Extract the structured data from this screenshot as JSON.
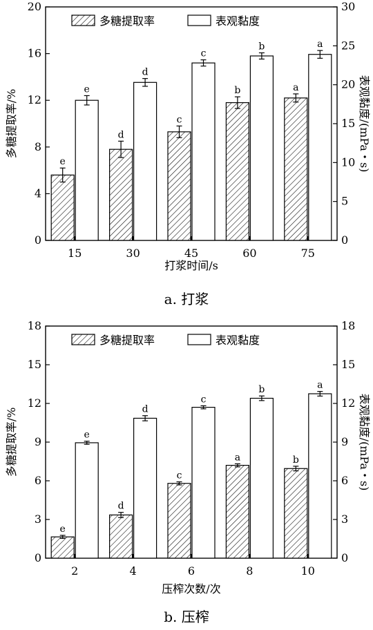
{
  "chart_data": [
    {
      "type": "bar",
      "categories": [
        "15",
        "30",
        "45",
        "60",
        "75"
      ],
      "xlabel": "打浆时间/s",
      "ylabel": "多糖提取率/%",
      "y2label": "表观黏度/(mPa・s)",
      "ylim": [
        0,
        20
      ],
      "y2lim": [
        0,
        30
      ],
      "yticks": [
        "0",
        "4",
        "8",
        "12",
        "16",
        "20"
      ],
      "y2ticks": [
        "0",
        "5",
        "10",
        "15",
        "20",
        "25",
        "30"
      ],
      "legend_position": "top",
      "caption": "a. 打浆",
      "series": [
        {
          "name": "多糖提取率",
          "axis": "left",
          "fill": "hatched",
          "values": [
            5.6,
            7.8,
            9.3,
            11.8,
            12.2
          ],
          "errors": [
            0.6,
            0.7,
            0.5,
            0.5,
            0.35
          ],
          "letters": [
            "e",
            "d",
            "c",
            "b",
            "a"
          ]
        },
        {
          "name": "表观黏度",
          "axis": "right",
          "fill": "white",
          "values": [
            18.0,
            20.3,
            22.8,
            23.7,
            23.9
          ],
          "errors": [
            0.6,
            0.5,
            0.4,
            0.4,
            0.5
          ],
          "letters": [
            "e",
            "d",
            "c",
            "b",
            "a"
          ]
        }
      ]
    },
    {
      "type": "bar",
      "categories": [
        "2",
        "4",
        "6",
        "8",
        "10"
      ],
      "xlabel": "压榨次数/次",
      "ylabel": "多糖提取率/%",
      "y2label": "表观黏度/(mPa・s)",
      "ylim": [
        0,
        18
      ],
      "y2lim": [
        0,
        18
      ],
      "yticks": [
        "0",
        "3",
        "6",
        "9",
        "12",
        "15",
        "18"
      ],
      "y2ticks": [
        "0",
        "3",
        "6",
        "9",
        "12",
        "15",
        "18"
      ],
      "legend_position": "top",
      "caption": "b. 压榨",
      "series": [
        {
          "name": "多糖提取率",
          "axis": "left",
          "fill": "hatched",
          "values": [
            1.65,
            3.35,
            5.8,
            7.2,
            6.95
          ],
          "errors": [
            0.12,
            0.2,
            0.12,
            0.12,
            0.18
          ],
          "letters": [
            "e",
            "d",
            "c",
            "a",
            "b"
          ]
        },
        {
          "name": "表观黏度",
          "axis": "right",
          "fill": "white",
          "values": [
            8.95,
            10.85,
            11.7,
            12.4,
            12.75
          ],
          "errors": [
            0.12,
            0.2,
            0.12,
            0.18,
            0.18
          ],
          "letters": [
            "e",
            "d",
            "c",
            "b",
            "a"
          ]
        }
      ]
    }
  ]
}
